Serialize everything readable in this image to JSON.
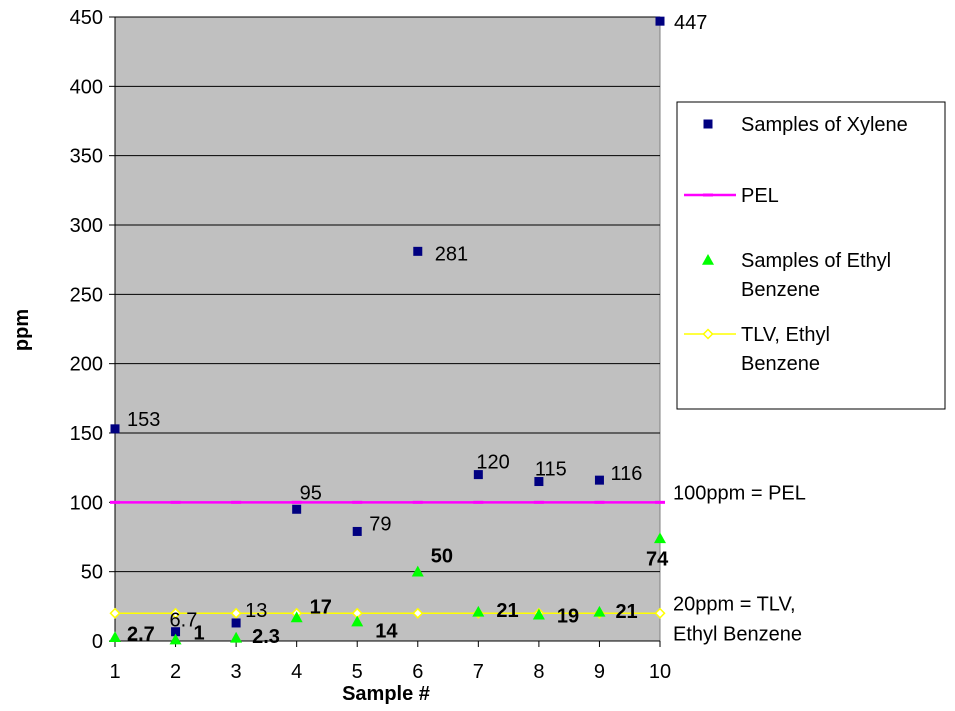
{
  "chart_data": {
    "type": "scatter",
    "x": [
      1,
      2,
      3,
      4,
      5,
      6,
      7,
      8,
      9,
      10
    ],
    "xlabel": "Sample #",
    "ylabel": "ppm",
    "xlim": [
      1,
      10
    ],
    "ylim": [
      0,
      450
    ],
    "y_ticks": [
      0,
      50,
      100,
      150,
      200,
      250,
      300,
      350,
      400,
      450
    ],
    "grid": "horizontal",
    "legend_position": "right",
    "colors": {
      "plot_background": "#c0c0c0",
      "xylene": "#000080",
      "pel": "#ff00ff",
      "ethyl": "#00ff00",
      "tlv": "#ffff00"
    },
    "series": [
      {
        "name": "Samples of Xylene",
        "marker": "square",
        "values": [
          153,
          6.7,
          13,
          95,
          79,
          281,
          120,
          115,
          116,
          447
        ],
        "labels": [
          "153",
          "6.7",
          "13",
          "95",
          "79",
          "281",
          "120",
          "115",
          "116",
          "447"
        ]
      },
      {
        "name": "PEL",
        "marker": "line",
        "values": [
          100,
          100,
          100,
          100,
          100,
          100,
          100,
          100,
          100,
          100
        ]
      },
      {
        "name": "Samples of Ethyl Benzene",
        "marker": "triangle",
        "values": [
          2.7,
          1,
          2.3,
          17,
          14,
          50,
          21,
          19,
          21,
          74
        ],
        "labels": [
          "2.7",
          "1",
          "2.3",
          "17",
          "14",
          "50",
          "21",
          "19",
          "21",
          "74"
        ]
      },
      {
        "name": "TLV, Ethyl Benzene",
        "marker": "diamond-line",
        "values": [
          20,
          20,
          20,
          20,
          20,
          20,
          20,
          20,
          20,
          20
        ]
      }
    ],
    "annotations": [
      {
        "y": 100,
        "lines": [
          "100ppm = PEL"
        ]
      },
      {
        "y": 20,
        "lines": [
          "20ppm = TLV,",
          "Ethyl Benzene"
        ]
      }
    ],
    "legend": [
      {
        "lines": [
          "Samples of Xylene"
        ]
      },
      {
        "lines": [
          "PEL"
        ]
      },
      {
        "lines": [
          "Samples of Ethyl",
          "Benzene"
        ]
      },
      {
        "lines": [
          "TLV, Ethyl",
          "Benzene"
        ]
      }
    ]
  }
}
